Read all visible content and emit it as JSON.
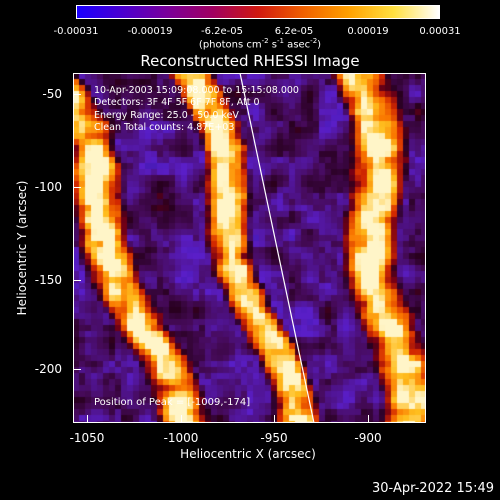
{
  "colorbar": {
    "ticks": [
      "-0.00031",
      "-0.00019",
      "-6.2e-05",
      "6.2e-05",
      "0.00019",
      "0.00031"
    ],
    "units_main": "(photons cm",
    "units_sup1": "-2",
    "units_mid1": " s",
    "units_sup2": "-1",
    "units_mid2": " asec",
    "units_sup3": "-2",
    "units_end": ")",
    "stops": [
      "#1a00ff",
      "#4a00d0",
      "#7a009a",
      "#a00060",
      "#d01810",
      "#f06000",
      "#ffa000",
      "#ffe040",
      "#ffffff"
    ]
  },
  "title": "Reconstructed RHESSI Image",
  "info": {
    "time_range": "10-Apr-2003 15:09:08.000 to 15:15:08.000",
    "detectors": "Detectors: 3F 4F 5F 6F 7F 8F, Att 0",
    "energy": "Energy Range: 25.0 - 50.0 keV",
    "clean": "Clean     Total counts: 4.87E+03"
  },
  "peak_label": "Position of Peak = [-1009,-174]",
  "axes": {
    "xlabel": "Heliocentric X (arcsec)",
    "ylabel": "Heliocentric Y (arcsec)",
    "xticks": [
      "-1050",
      "-1000",
      "-950",
      "-900"
    ],
    "yticks": [
      "-50",
      "-100",
      "-150",
      "-200"
    ]
  },
  "timestamp": "30-Apr-2022 15:49"
}
